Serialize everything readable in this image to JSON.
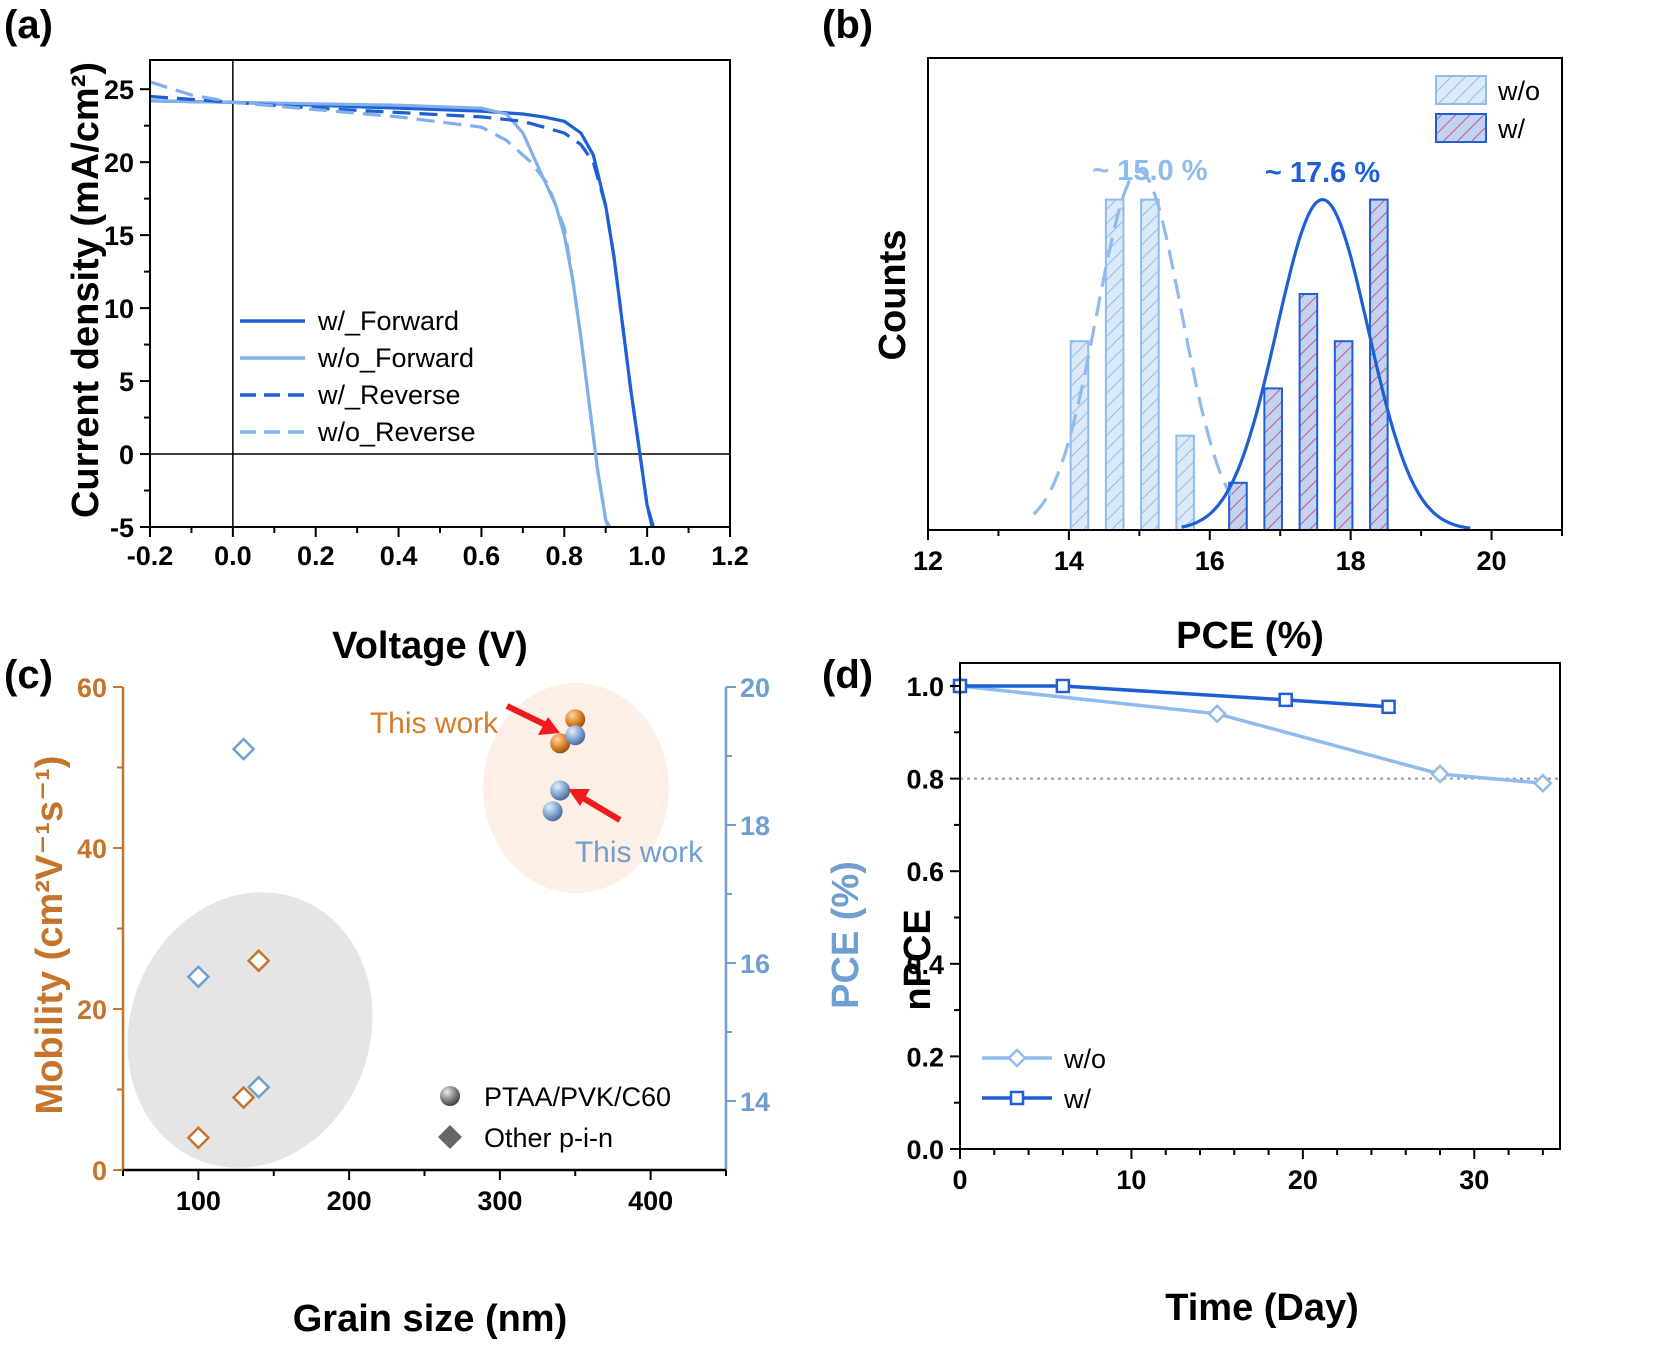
{
  "chart_data": [
    {
      "panel": "(a)",
      "type": "line",
      "xlabel": "Voltage (V)",
      "ylabel": "Current density (mA/cm²)",
      "xlim": [
        -0.2,
        1.2
      ],
      "ylim": [
        -5,
        27
      ],
      "xticks": [
        "-0.2",
        "0.0",
        "0.2",
        "0.4",
        "0.6",
        "0.8",
        "1.0",
        "1.2"
      ],
      "yticks": [
        "-5",
        "0",
        "5",
        "10",
        "15",
        "20",
        "25"
      ],
      "legend_position": "center-left",
      "series": [
        {
          "name": "w/_Forward",
          "color": "#1f5fd6",
          "dash": "solid",
          "x": [
            -0.2,
            0.0,
            0.2,
            0.4,
            0.6,
            0.7,
            0.75,
            0.8,
            0.84,
            0.87,
            0.9,
            0.92,
            0.94,
            0.96,
            0.98,
            1.0,
            1.015
          ],
          "y": [
            24.2,
            24.1,
            23.9,
            23.7,
            23.5,
            23.3,
            23.1,
            22.8,
            22.0,
            20.5,
            17.0,
            13.5,
            9.0,
            4.5,
            0.5,
            -3.5,
            -5
          ]
        },
        {
          "name": "w/o_Forward",
          "color": "#7fb0ea",
          "dash": "solid",
          "x": [
            -0.2,
            0.0,
            0.2,
            0.4,
            0.6,
            0.66,
            0.7,
            0.74,
            0.78,
            0.8,
            0.82,
            0.84,
            0.86,
            0.88,
            0.9,
            0.91
          ],
          "y": [
            24.2,
            24.1,
            24.0,
            23.9,
            23.7,
            23.3,
            22.0,
            19.5,
            17.0,
            15.0,
            12.0,
            8.0,
            3.5,
            -1.0,
            -4.5,
            -5
          ]
        },
        {
          "name": "w/_Reverse",
          "color": "#1f5fd6",
          "dash": "dashed",
          "x": [
            -0.2,
            0.0,
            0.2,
            0.4,
            0.6,
            0.7,
            0.8,
            0.84,
            0.87,
            0.9,
            0.92,
            0.94,
            0.96,
            0.98,
            1.0,
            1.012
          ],
          "y": [
            24.5,
            24.1,
            23.7,
            23.4,
            23.1,
            22.8,
            22.0,
            21.2,
            20.0,
            17.0,
            13.5,
            9.0,
            4.5,
            0.5,
            -3.5,
            -5
          ]
        },
        {
          "name": "w/o_Reverse",
          "color": "#7fb0ea",
          "dash": "dashed",
          "x": [
            -0.2,
            -0.1,
            0.0,
            0.2,
            0.4,
            0.6,
            0.66,
            0.72,
            0.76,
            0.8,
            0.82,
            0.84,
            0.86,
            0.88,
            0.9,
            0.905
          ],
          "y": [
            25.5,
            24.6,
            24.1,
            23.6,
            23.1,
            22.4,
            21.5,
            20.0,
            18.5,
            15.5,
            12.0,
            8.0,
            3.5,
            -1.0,
            -4.5,
            -5
          ]
        }
      ]
    },
    {
      "panel": "(b)",
      "type": "bar",
      "xlabel": "PCE (%)",
      "ylabel": "Counts",
      "xlim": [
        12,
        21
      ],
      "ylim": [
        0,
        10
      ],
      "xticks": [
        "12",
        "14",
        "16",
        "18",
        "20"
      ],
      "legend_position": "top-right",
      "annotations": [
        "~ 15.0 %",
        "~ 17.6 %"
      ],
      "series": [
        {
          "name": "w/o",
          "color": "#8fbcec",
          "fill": "#d9e8f8",
          "bin_width": 0.25,
          "x": [
            14.15,
            14.65,
            15.15,
            15.65
          ],
          "counts": [
            4,
            7,
            7,
            2
          ],
          "fit": {
            "center": 15.0,
            "sigma": 0.6,
            "peak": 7.6,
            "range": [
              13.5,
              16.3
            ]
          }
        },
        {
          "name": "w/",
          "color": "#1f5fd6",
          "fill": "#c6d4f3",
          "bin_width": 0.25,
          "x": [
            16.4,
            16.9,
            17.4,
            17.9,
            18.4
          ],
          "counts": [
            1,
            3,
            5,
            4,
            7
          ],
          "fit": {
            "center": 17.6,
            "sigma": 0.65,
            "peak": 7,
            "range": [
              15.6,
              19.7
            ]
          }
        }
      ]
    },
    {
      "panel": "(c)",
      "type": "scatter",
      "xlabel": "Grain size (nm)",
      "ylabel": "Mobility (cm²V⁻¹s⁻¹)",
      "y2label": "PCE (%)",
      "xlim": [
        50,
        450
      ],
      "ylim": [
        0,
        60
      ],
      "y2lim": [
        13,
        20
      ],
      "xticks": [
        "100",
        "200",
        "300",
        "400"
      ],
      "yticks": [
        "0",
        "20",
        "40",
        "60"
      ],
      "y2ticks": [
        "14",
        "16",
        "18",
        "20"
      ],
      "annotations": [
        "This work",
        "This work"
      ],
      "legend": [
        "PTAA/PVK/C60",
        "Other p-i-n"
      ],
      "legend_position": "bottom-right",
      "series": [
        {
          "name": "Mobility, other p-i-n",
          "color": "#c6732c",
          "marker": "diamond",
          "axis": "left",
          "x": [
            100,
            130,
            140
          ],
          "y": [
            4,
            9,
            26
          ]
        },
        {
          "name": "PCE, other p-i-n",
          "color": "#6f9fd0",
          "marker": "diamond",
          "axis": "right",
          "x": [
            100,
            130,
            140
          ],
          "y": [
            15.8,
            19.1,
            14.2
          ]
        },
        {
          "name": "Mobility, this work",
          "color": "#d97a25",
          "marker": "sphere",
          "axis": "left",
          "x": [
            340,
            350
          ],
          "y": [
            53,
            56
          ]
        },
        {
          "name": "PCE, this work",
          "color": "#7aa3cf",
          "marker": "sphere",
          "axis": "right",
          "x": [
            350,
            340,
            335
          ],
          "y": [
            19.3,
            18.5,
            18.2
          ]
        }
      ]
    },
    {
      "panel": "(d)",
      "type": "line",
      "xlabel": "Time (Day)",
      "ylabel": "nPCE",
      "xlim": [
        0,
        35
      ],
      "ylim": [
        0,
        1.05
      ],
      "xticks": [
        "0",
        "10",
        "20",
        "30"
      ],
      "yticks": [
        "0.0",
        "0.2",
        "0.4",
        "0.6",
        "0.8",
        "1.0"
      ],
      "reference_line": 0.8,
      "legend_position": "bottom-left",
      "series": [
        {
          "name": "w/o",
          "color": "#8fbcec",
          "marker": "diamond",
          "x": [
            0,
            15,
            28,
            34
          ],
          "y": [
            1.0,
            0.94,
            0.81,
            0.79
          ]
        },
        {
          "name": "w/",
          "color": "#1f5fd6",
          "marker": "square",
          "x": [
            0,
            6,
            19,
            25
          ],
          "y": [
            1.0,
            1.0,
            0.97,
            0.955
          ]
        }
      ]
    }
  ]
}
